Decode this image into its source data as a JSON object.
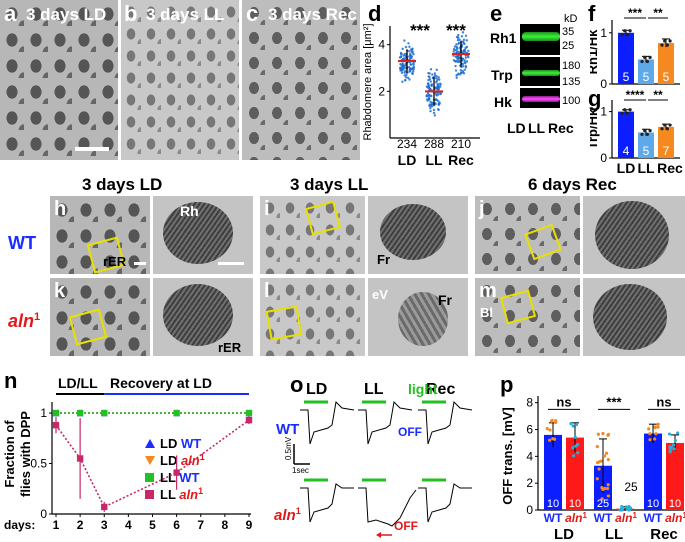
{
  "panel_labels": {
    "a": "a",
    "b": "b",
    "c": "c",
    "d": "d",
    "e": "e",
    "f": "f",
    "g": "g",
    "h": "h",
    "i": "i",
    "j": "j",
    "k": "k",
    "l": "l",
    "m": "m",
    "n": "n",
    "o": "o",
    "p": "p"
  },
  "top_titles": {
    "a": "3 days LD",
    "b": "3 days LL",
    "c": "3 days Rec"
  },
  "em_titles": {
    "ld": "3 days LD",
    "ll": "3 days LL",
    "rec": "6 days Rec"
  },
  "genotypes": {
    "wt": "WT",
    "aln": "aln",
    "aln_sup": "1"
  },
  "em_annotations": {
    "rh": "Rh",
    "rer1": "rER",
    "rer2": "rER",
    "fr1": "Fr",
    "fr2": "Fr",
    "ev": "eV",
    "bl": "Bl"
  },
  "western": {
    "kd": "kD",
    "rows": [
      "Rh1",
      "Trp",
      "Hk"
    ],
    "markers": [
      "35",
      "25",
      "180",
      "135",
      "100"
    ],
    "lanes": [
      "LD",
      "LL",
      "Rec"
    ],
    "colors": {
      "rh1": "#2bd92b",
      "trp": "#2bd92b",
      "hk": "#e03ae0"
    }
  },
  "chart_data": [
    {
      "id": "d",
      "type": "scatter",
      "ylabel": "Rhabdomere area [μm²]",
      "categories": [
        "LD",
        "LL",
        "Rec"
      ],
      "means": [
        3.3,
        2.0,
        3.6
      ],
      "sd": [
        0.5,
        0.6,
        0.55
      ],
      "n": [
        "234",
        "288",
        "210"
      ],
      "stars": [
        "***",
        "***"
      ],
      "yticks": [
        2,
        4
      ],
      "ylim": [
        0,
        4.8
      ],
      "colors": {
        "points": "#1f6fd1",
        "mean": "#e02020"
      }
    },
    {
      "id": "f",
      "type": "bar",
      "ylabel": "Rh1/Hk",
      "categories": [
        "LD",
        "LL",
        "Rec"
      ],
      "values": [
        1.0,
        0.48,
        0.8
      ],
      "sd": [
        0.05,
        0.06,
        0.08
      ],
      "n": [
        "5",
        "5",
        "5"
      ],
      "stars": [
        "***",
        "**"
      ],
      "yticks": [
        0,
        1
      ],
      "ylim": [
        0,
        1.25
      ],
      "colors": [
        "#0a1eff",
        "#5da9e9",
        "#f5881f"
      ]
    },
    {
      "id": "g",
      "type": "bar",
      "ylabel": "Trp/Hk",
      "categories": [
        "LD",
        "LL",
        "Rec"
      ],
      "values": [
        1.0,
        0.55,
        0.67
      ],
      "sd": [
        0.04,
        0.07,
        0.06
      ],
      "n": [
        "4",
        "5",
        "7"
      ],
      "stars": [
        "****",
        "**"
      ],
      "yticks": [
        0,
        1
      ],
      "ylim": [
        0,
        1.25
      ],
      "colors": [
        "#0a1eff",
        "#5da9e9",
        "#f5881f"
      ]
    },
    {
      "id": "n",
      "type": "line",
      "ylabel": "Fraction of flies with DPP",
      "xlabel": "days:",
      "top_labels": {
        "ll": "LD/LL",
        "rec": "Recovery at LD"
      },
      "x": [
        1,
        2,
        3,
        6,
        9
      ],
      "xticks": [
        "1",
        "2",
        "3",
        "4",
        "5",
        "6",
        "7",
        "8",
        "9"
      ],
      "yticks": [
        "0",
        "0.5",
        "1"
      ],
      "ylim": [
        0,
        1.05
      ],
      "series": [
        {
          "name": "LD",
          "geno": "WT",
          "color": "#1a2cff",
          "marker": "triangle",
          "values": [
            1.0,
            1.0,
            1.0,
            1.0,
            1.0
          ],
          "err": [
            0,
            0,
            0,
            0,
            0
          ]
        },
        {
          "name": "LD",
          "geno": "aln",
          "sup": "1",
          "color": "#f5881f",
          "marker": "triangle-down",
          "values": [
            1.0,
            1.0,
            1.0,
            1.0,
            1.0
          ],
          "err": [
            0,
            0,
            0,
            0,
            0
          ]
        },
        {
          "name": "LL",
          "geno": "WT",
          "color": "#22c022",
          "marker": "square",
          "values": [
            1.0,
            1.0,
            1.0,
            1.0,
            1.0
          ],
          "err": [
            0,
            0,
            0,
            0,
            0
          ]
        },
        {
          "name": "LL",
          "geno": "aln",
          "sup": "1",
          "color": "#c8286a",
          "marker": "square",
          "values": [
            0.88,
            0.55,
            0.07,
            0.41,
            0.93
          ],
          "err": [
            0.08,
            0.4,
            0.05,
            0.17,
            0.04
          ]
        }
      ]
    },
    {
      "id": "o",
      "type": "line",
      "columns": [
        "LD",
        "LL",
        "Rec"
      ],
      "light": "light",
      "off": "OFF",
      "scale_y": "0.5mV",
      "scale_x": "1sec",
      "rows": [
        "WT",
        "aln"
      ]
    },
    {
      "id": "p",
      "type": "bar",
      "ylabel": "OFF trans. [mV]",
      "groups": [
        "LD",
        "LL",
        "Rec"
      ],
      "subcats": [
        "WT",
        "aln"
      ],
      "sup": "1",
      "values": [
        5.6,
        5.4,
        3.3,
        0.1,
        5.7,
        5.0
      ],
      "sd": [
        0.9,
        1.1,
        2.0,
        0.15,
        0.7,
        0.6
      ],
      "n": [
        "10",
        "10",
        "25",
        "25",
        "10",
        "10"
      ],
      "stats": [
        "ns",
        "***",
        "ns"
      ],
      "yticks": [
        "0",
        "2",
        "4",
        "6",
        "8"
      ],
      "ylim": [
        0,
        8.5
      ],
      "colors": {
        "wt": "#0a1eff",
        "aln": "#ff1a1a",
        "wt_dot": "#f5881f",
        "aln_dot": "#25b0d8"
      }
    }
  ]
}
